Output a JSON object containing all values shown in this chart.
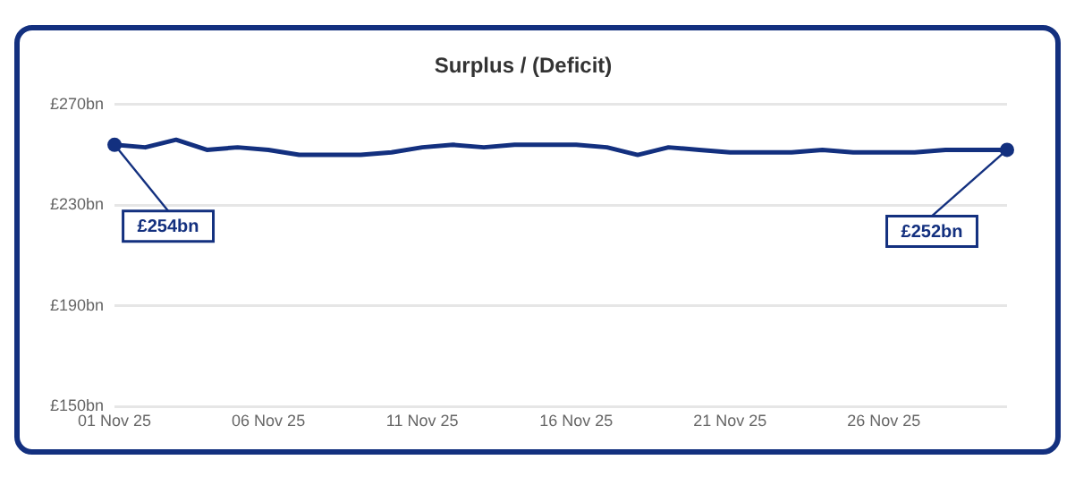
{
  "chart_data": {
    "type": "line",
    "title": "Surplus / (Deficit)",
    "x": [
      "--11-01",
      "--11-02",
      "--11-03",
      "--11-04",
      "--11-05",
      "--11-06",
      "--11-07",
      "--11-08",
      "--11-09",
      "--11-10",
      "--11-11",
      "--11-12",
      "--11-13",
      "--11-14",
      "--11-15",
      "--11-16",
      "--11-17",
      "--11-18",
      "--11-19",
      "--11-20",
      "--11-21",
      "--11-22",
      "--11-23",
      "--11-24",
      "--11-25",
      "--11-26",
      "--11-27",
      "--11-28",
      "--11-29",
      "--11-30"
    ],
    "series": [
      {
        "color": "#13307f",
        "values": [
          254,
          253,
          256,
          252,
          253,
          252,
          250,
          250,
          250,
          251,
          253,
          254,
          253,
          254,
          254,
          254,
          253,
          250,
          253,
          252,
          251,
          251,
          251,
          252,
          251,
          251,
          251,
          252,
          252,
          252
        ]
      }
    ],
    "xlim": [
      "--11-01",
      "--11-30"
    ],
    "xticks": [
      {
        "value": "--11-01",
        "label": "01 Nov 25"
      },
      {
        "value": "--11-06",
        "label": "06 Nov 25"
      },
      {
        "value": "--11-11",
        "label": "11 Nov 25"
      },
      {
        "value": "--11-16",
        "label": "16 Nov 25"
      },
      {
        "value": "--11-21",
        "label": "21 Nov 25"
      },
      {
        "value": "--11-26",
        "label": "26 Nov 25"
      }
    ],
    "ylim": [
      150,
      270
    ],
    "yticks": [
      {
        "value": 150,
        "label": "£150bn"
      },
      {
        "value": 190,
        "label": "£190bn"
      },
      {
        "value": 230,
        "label": "£230bn"
      },
      {
        "value": 270,
        "label": "£270bn"
      }
    ],
    "grid": "y",
    "legend": false,
    "marker": "none",
    "line_style": "solid",
    "annotations": [
      {
        "text": "£254bn",
        "x": "--11-01",
        "y": 254
      },
      {
        "text": "£252bn",
        "x": "--11-30",
        "y": 252
      }
    ]
  }
}
